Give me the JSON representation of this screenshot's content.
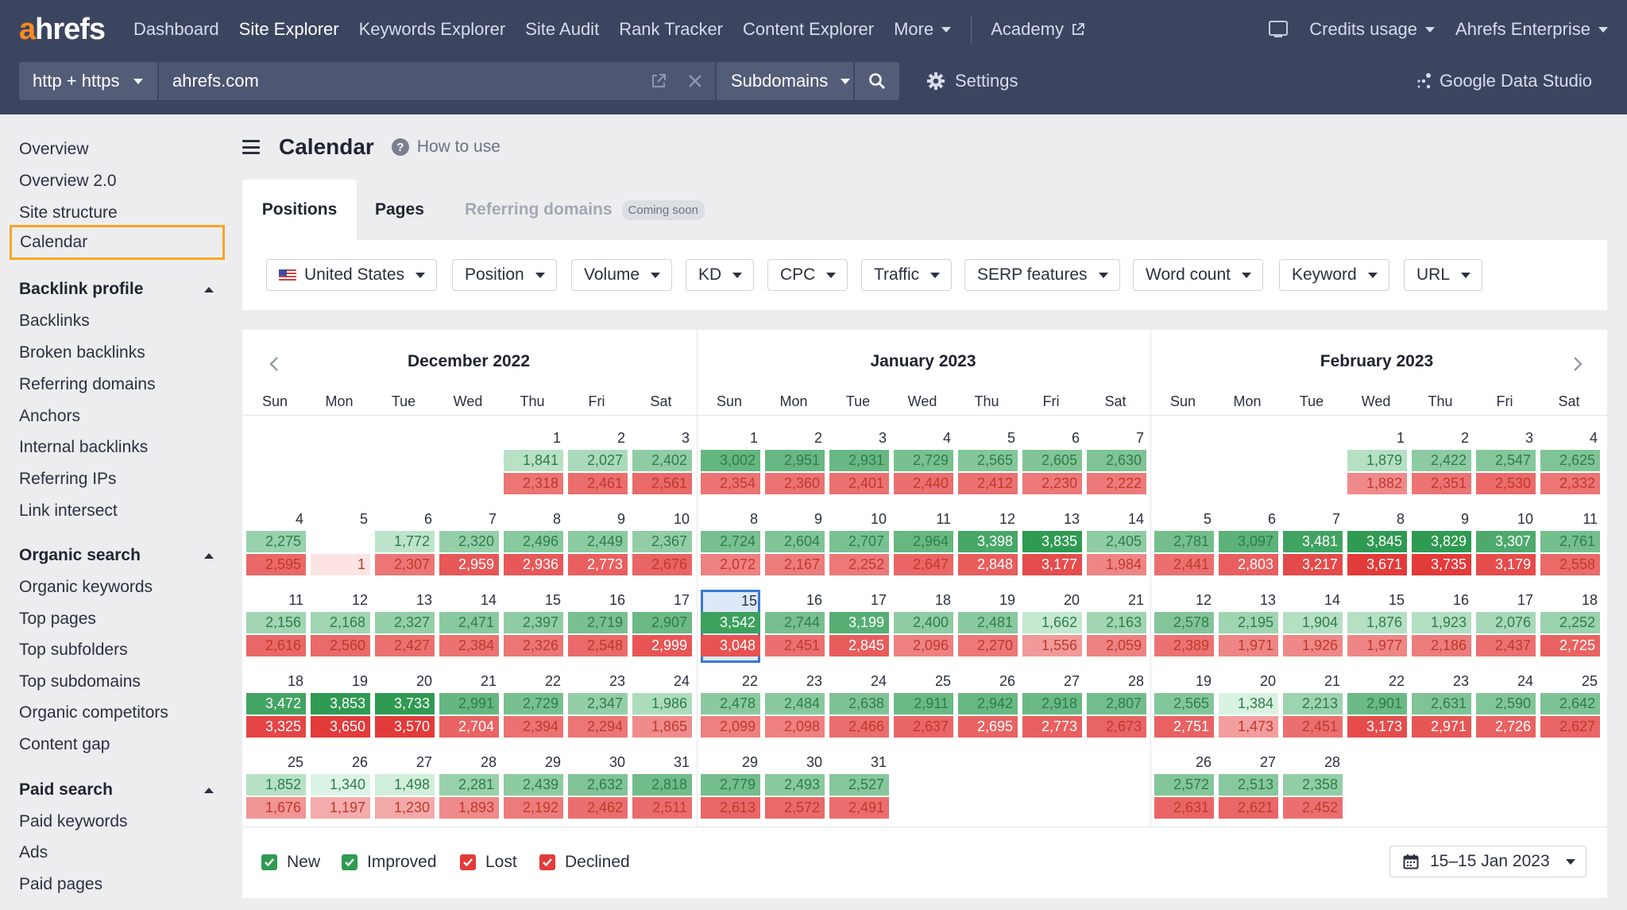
{
  "brand": {
    "logo_a": "a",
    "logo_rest": "hrefs"
  },
  "nav": {
    "items": [
      "Dashboard",
      "Site Explorer",
      "Keywords Explorer",
      "Site Audit",
      "Rank Tracker",
      "Content Explorer",
      "More",
      "Academy"
    ],
    "active": "Site Explorer",
    "credits": "Credits usage",
    "account": "Ahrefs Enterprise"
  },
  "search": {
    "protocol": "http + https",
    "url": "ahrefs.com",
    "mode": "Subdomains",
    "settings": "Settings",
    "gds": "Google Data Studio"
  },
  "sidebar": {
    "top": [
      "Overview",
      "Overview 2.0",
      "Site structure",
      "Calendar"
    ],
    "selected": "Calendar",
    "sections": [
      {
        "title": "Backlink profile",
        "items": [
          "Backlinks",
          "Broken backlinks",
          "Referring domains",
          "Anchors",
          "Internal backlinks",
          "Referring IPs",
          "Link intersect"
        ]
      },
      {
        "title": "Organic search",
        "items": [
          "Organic keywords",
          "Top pages",
          "Top subfolders",
          "Top subdomains",
          "Organic competitors",
          "Content gap"
        ]
      },
      {
        "title": "Paid search",
        "items": [
          "Paid keywords",
          "Ads",
          "Paid pages"
        ]
      }
    ]
  },
  "page": {
    "title": "Calendar",
    "how_to_use": "How to use"
  },
  "tabs": {
    "positions": "Positions",
    "pages": "Pages",
    "referring": "Referring domains",
    "soon": "Coming soon"
  },
  "filters": [
    "United States",
    "Position",
    "Volume",
    "KD",
    "CPC",
    "Traffic",
    "SERP features",
    "Word count",
    "Keyword",
    "URL"
  ],
  "weekdays": [
    "Sun",
    "Mon",
    "Tue",
    "Wed",
    "Thu",
    "Fri",
    "Sat"
  ],
  "legend": {
    "new": "New",
    "improved": "Improved",
    "lost": "Lost",
    "declined": "Declined"
  },
  "date_range": "15–15 Jan 2023",
  "colors": {
    "green_light": "#dcf4e5",
    "green_strong": "#2f9a52",
    "red_light": "#fde4e4",
    "red_strong": "#e33a3a",
    "selected": "#3a79d6",
    "accent": "#f5a623"
  },
  "months": [
    {
      "title": "December 2022",
      "start": 4,
      "days": [
        [
          1,
          1841,
          2318
        ],
        [
          2,
          2027,
          2461
        ],
        [
          3,
          2402,
          2561
        ],
        [
          4,
          2275,
          2595
        ],
        [
          5,
          null,
          1
        ],
        [
          6,
          1772,
          2307
        ],
        [
          7,
          2320,
          2959
        ],
        [
          8,
          2496,
          2936
        ],
        [
          9,
          2449,
          2773
        ],
        [
          10,
          2367,
          2676
        ],
        [
          11,
          2156,
          2616
        ],
        [
          12,
          2168,
          2560
        ],
        [
          13,
          2327,
          2427
        ],
        [
          14,
          2471,
          2384
        ],
        [
          15,
          2397,
          2326
        ],
        [
          16,
          2719,
          2548
        ],
        [
          17,
          2907,
          2999
        ],
        [
          18,
          3472,
          3325
        ],
        [
          19,
          3853,
          3650
        ],
        [
          20,
          3733,
          3570
        ],
        [
          21,
          2991,
          2704
        ],
        [
          22,
          2729,
          2394
        ],
        [
          23,
          2347,
          2294
        ],
        [
          24,
          1986,
          1865
        ],
        [
          25,
          1852,
          1676
        ],
        [
          26,
          1340,
          1197
        ],
        [
          27,
          1498,
          1230
        ],
        [
          28,
          2281,
          1893
        ],
        [
          29,
          2439,
          2192
        ],
        [
          30,
          2632,
          2462
        ],
        [
          31,
          2818,
          2511
        ]
      ]
    },
    {
      "title": "January 2023",
      "start": 0,
      "days": [
        [
          1,
          3002,
          2354
        ],
        [
          2,
          2951,
          2360
        ],
        [
          3,
          2931,
          2401
        ],
        [
          4,
          2729,
          2440
        ],
        [
          5,
          2565,
          2412
        ],
        [
          6,
          2605,
          2230
        ],
        [
          7,
          2630,
          2222
        ],
        [
          8,
          2724,
          2072
        ],
        [
          9,
          2604,
          2167
        ],
        [
          10,
          2707,
          2252
        ],
        [
          11,
          2964,
          2647
        ],
        [
          12,
          3398,
          2848
        ],
        [
          13,
          3835,
          3177
        ],
        [
          14,
          2405,
          1984
        ],
        [
          15,
          3542,
          3048
        ],
        [
          16,
          2744,
          2451
        ],
        [
          17,
          3199,
          2845
        ],
        [
          18,
          2400,
          2096
        ],
        [
          19,
          2481,
          2270
        ],
        [
          20,
          1662,
          1556
        ],
        [
          21,
          2163,
          2059
        ],
        [
          22,
          2478,
          2099
        ],
        [
          23,
          2484,
          2098
        ],
        [
          24,
          2638,
          2466
        ],
        [
          25,
          2911,
          2637
        ],
        [
          26,
          2942,
          2695
        ],
        [
          27,
          2918,
          2773
        ],
        [
          28,
          2807,
          2673
        ],
        [
          29,
          2779,
          2613
        ],
        [
          30,
          2493,
          2572
        ],
        [
          31,
          2527,
          2491
        ]
      ]
    },
    {
      "title": "February 2023",
      "start": 3,
      "days": [
        [
          1,
          1879,
          1882
        ],
        [
          2,
          2422,
          2351
        ],
        [
          3,
          2547,
          2530
        ],
        [
          4,
          2625,
          2332
        ],
        [
          5,
          2781,
          2441
        ],
        [
          6,
          3097,
          2803
        ],
        [
          7,
          3481,
          3217
        ],
        [
          8,
          3845,
          3671
        ],
        [
          9,
          3829,
          3735
        ],
        [
          10,
          3307,
          3179
        ],
        [
          11,
          2761,
          2558
        ],
        [
          12,
          2578,
          2389
        ],
        [
          13,
          2195,
          1971
        ],
        [
          14,
          1904,
          1926
        ],
        [
          15,
          1876,
          1977
        ],
        [
          16,
          1923,
          2186
        ],
        [
          17,
          2076,
          2437
        ],
        [
          18,
          2252,
          2725
        ],
        [
          19,
          2565,
          2751
        ],
        [
          20,
          1384,
          1473
        ],
        [
          21,
          2213,
          2451
        ],
        [
          22,
          2901,
          3173
        ],
        [
          23,
          2631,
          2971
        ],
        [
          24,
          2590,
          2726
        ],
        [
          25,
          2642,
          2627
        ],
        [
          26,
          2572,
          2631
        ],
        [
          27,
          2513,
          2621
        ],
        [
          28,
          2358,
          2452
        ]
      ]
    }
  ],
  "selected_day": {
    "month": 1,
    "day": 15
  }
}
